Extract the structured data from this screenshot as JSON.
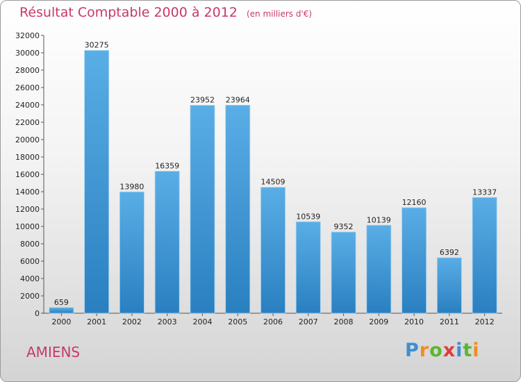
{
  "chart_data": {
    "type": "bar",
    "title": "Résultat Comptable 2000 à 2012",
    "subtitle": "(en milliers d'€)",
    "categories": [
      "2000",
      "2001",
      "2002",
      "2003",
      "2004",
      "2005",
      "2006",
      "2007",
      "2008",
      "2009",
      "2010",
      "2011",
      "2012"
    ],
    "values": [
      659,
      30275,
      13980,
      16359,
      23952,
      23964,
      14509,
      10539,
      9352,
      10139,
      12160,
      6392,
      13337
    ],
    "data_labels": [
      "659",
      "30275",
      "13980",
      "16359",
      "23952",
      "23964",
      "14509",
      "10539",
      "9352",
      "10139",
      "12160",
      "6392",
      "13337"
    ],
    "ylim": [
      0,
      32000
    ],
    "ytick_step": 2000,
    "grid": false,
    "bar_color_top": "#5aaee6",
    "bar_color_bottom": "#2a7fc0"
  },
  "footer": {
    "city": "AMIENS"
  },
  "logo": {
    "letters": [
      "P",
      "r",
      "o",
      "x",
      "i",
      "t",
      "i"
    ],
    "colors": [
      "#3d8fd0",
      "#f28c1e",
      "#5cb531",
      "#e23b3b",
      "#3d8fd0",
      "#5cb531",
      "#f28c1e"
    ]
  }
}
